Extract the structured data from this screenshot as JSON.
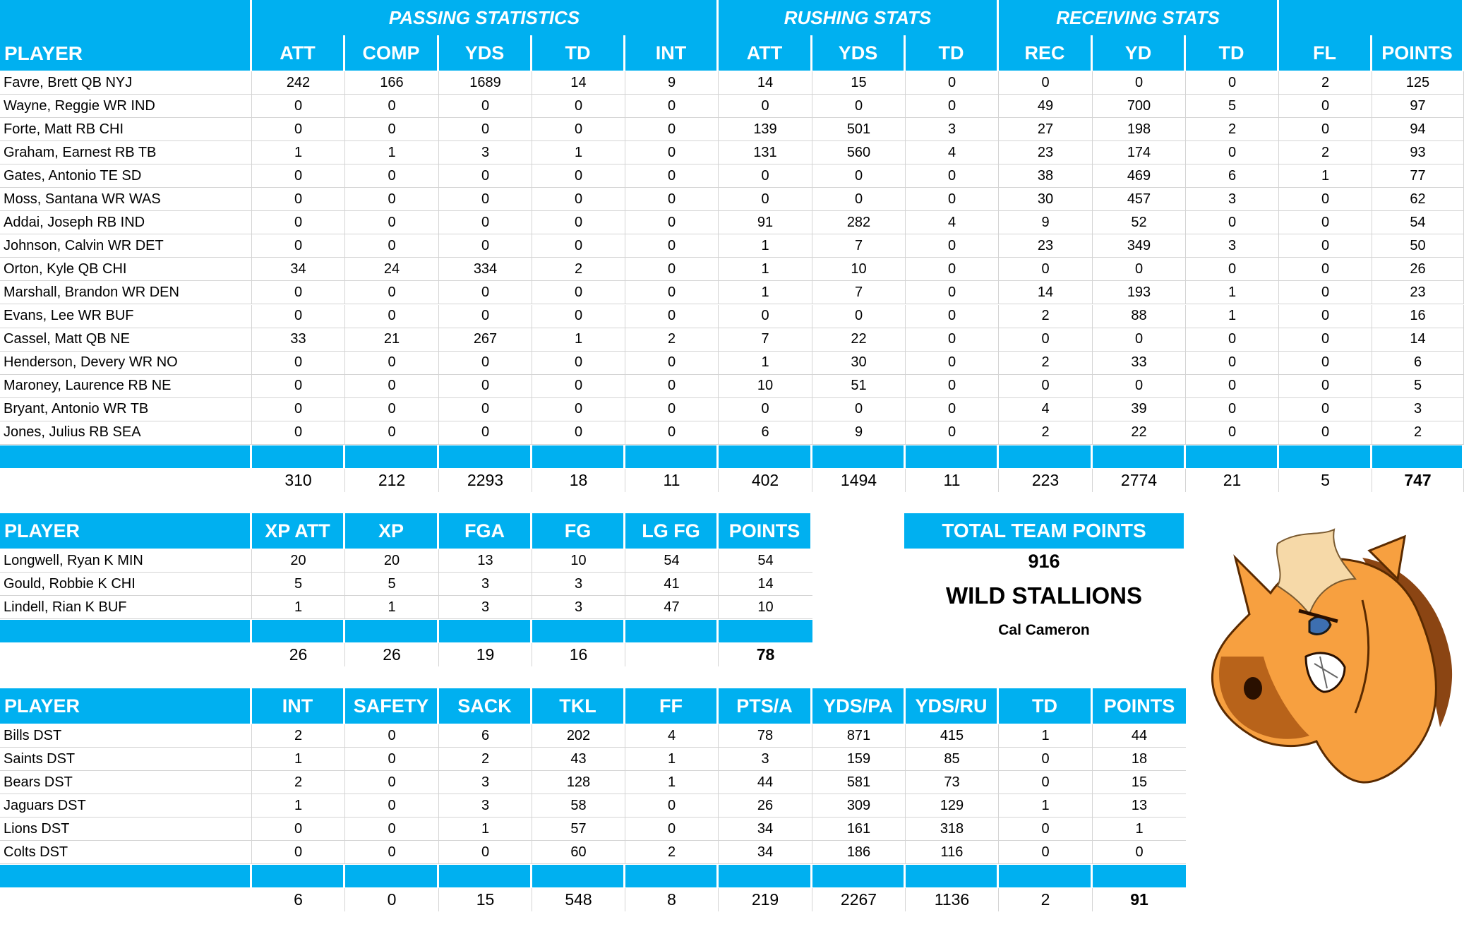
{
  "colors": {
    "accent": "#00B0F0",
    "header_text": "#FFFFFF",
    "grid": "#D4D4D4"
  },
  "offense": {
    "groups": [
      {
        "label": "PASSING STATISTICS"
      },
      {
        "label": "RUSHING STATS"
      },
      {
        "label": "RECEIVING STATS"
      }
    ],
    "columns": [
      "PLAYER",
      "ATT",
      "COMP",
      "YDS",
      "TD",
      "INT",
      "ATT",
      "YDS",
      "TD",
      "REC",
      "YD",
      "TD",
      "FL",
      "POINTS"
    ],
    "rows": [
      [
        "Favre, Brett QB NYJ",
        "242",
        "166",
        "1689",
        "14",
        "9",
        "14",
        "15",
        "0",
        "0",
        "0",
        "0",
        "2",
        "125"
      ],
      [
        "Wayne, Reggie WR IND",
        "0",
        "0",
        "0",
        "0",
        "0",
        "0",
        "0",
        "0",
        "49",
        "700",
        "5",
        "0",
        "97"
      ],
      [
        "Forte, Matt RB CHI",
        "0",
        "0",
        "0",
        "0",
        "0",
        "139",
        "501",
        "3",
        "27",
        "198",
        "2",
        "0",
        "94"
      ],
      [
        "Graham, Earnest RB TB",
        "1",
        "1",
        "3",
        "1",
        "0",
        "131",
        "560",
        "4",
        "23",
        "174",
        "0",
        "2",
        "93"
      ],
      [
        "Gates, Antonio TE SD",
        "0",
        "0",
        "0",
        "0",
        "0",
        "0",
        "0",
        "0",
        "38",
        "469",
        "6",
        "1",
        "77"
      ],
      [
        "Moss, Santana WR WAS",
        "0",
        "0",
        "0",
        "0",
        "0",
        "0",
        "0",
        "0",
        "30",
        "457",
        "3",
        "0",
        "62"
      ],
      [
        "Addai, Joseph RB IND",
        "0",
        "0",
        "0",
        "0",
        "0",
        "91",
        "282",
        "4",
        "9",
        "52",
        "0",
        "0",
        "54"
      ],
      [
        "Johnson, Calvin WR DET",
        "0",
        "0",
        "0",
        "0",
        "0",
        "1",
        "7",
        "0",
        "23",
        "349",
        "3",
        "0",
        "50"
      ],
      [
        "Orton, Kyle QB CHI",
        "34",
        "24",
        "334",
        "2",
        "0",
        "1",
        "10",
        "0",
        "0",
        "0",
        "0",
        "0",
        "26"
      ],
      [
        "Marshall, Brandon WR DEN",
        "0",
        "0",
        "0",
        "0",
        "0",
        "1",
        "7",
        "0",
        "14",
        "193",
        "1",
        "0",
        "23"
      ],
      [
        "Evans, Lee WR BUF",
        "0",
        "0",
        "0",
        "0",
        "0",
        "0",
        "0",
        "0",
        "2",
        "88",
        "1",
        "0",
        "16"
      ],
      [
        "Cassel, Matt QB NE",
        "33",
        "21",
        "267",
        "1",
        "2",
        "7",
        "22",
        "0",
        "0",
        "0",
        "0",
        "0",
        "14"
      ],
      [
        "Henderson, Devery WR NO",
        "0",
        "0",
        "0",
        "0",
        "0",
        "1",
        "30",
        "0",
        "2",
        "33",
        "0",
        "0",
        "6"
      ],
      [
        "Maroney, Laurence RB NE",
        "0",
        "0",
        "0",
        "0",
        "0",
        "10",
        "51",
        "0",
        "0",
        "0",
        "0",
        "0",
        "5"
      ],
      [
        "Bryant, Antonio WR TB",
        "0",
        "0",
        "0",
        "0",
        "0",
        "0",
        "0",
        "0",
        "4",
        "39",
        "0",
        "0",
        "3"
      ],
      [
        "Jones, Julius RB SEA",
        "0",
        "0",
        "0",
        "0",
        "0",
        "6",
        "9",
        "0",
        "2",
        "22",
        "0",
        "0",
        "2"
      ]
    ],
    "totals": [
      "",
      "310",
      "212",
      "2293",
      "18",
      "11",
      "402",
      "1494",
      "11",
      "223",
      "2774",
      "21",
      "5",
      "747"
    ]
  },
  "kickers": {
    "columns": [
      "PLAYER",
      "XP ATT",
      "XP",
      "FGA",
      "FG",
      "LG FG",
      "POINTS"
    ],
    "rows": [
      [
        "Longwell, Ryan K MIN",
        "20",
        "20",
        "13",
        "10",
        "54",
        "54"
      ],
      [
        "Gould, Robbie K CHI",
        "5",
        "5",
        "3",
        "3",
        "41",
        "14"
      ],
      [
        "Lindell, Rian K BUF",
        "1",
        "1",
        "3",
        "3",
        "47",
        "10"
      ]
    ],
    "totals": [
      "",
      "26",
      "26",
      "19",
      "16",
      "",
      "78"
    ]
  },
  "defense": {
    "columns": [
      "PLAYER",
      "INT",
      "SAFETY",
      "SACK",
      "TKL",
      "FF",
      "PTS/A",
      "YDS/PA",
      "YDS/RU",
      "TD",
      "POINTS"
    ],
    "rows": [
      [
        "Bills DST",
        "2",
        "0",
        "6",
        "202",
        "4",
        "78",
        "871",
        "415",
        "1",
        "44"
      ],
      [
        "Saints DST",
        "1",
        "0",
        "2",
        "43",
        "1",
        "3",
        "159",
        "85",
        "0",
        "18"
      ],
      [
        "Bears DST",
        "2",
        "0",
        "3",
        "128",
        "1",
        "44",
        "581",
        "73",
        "0",
        "15"
      ],
      [
        "Jaguars DST",
        "1",
        "0",
        "3",
        "58",
        "0",
        "26",
        "309",
        "129",
        "1",
        "13"
      ],
      [
        "Lions DST",
        "0",
        "0",
        "1",
        "57",
        "0",
        "34",
        "161",
        "318",
        "0",
        "1"
      ],
      [
        "Colts DST",
        "0",
        "0",
        "0",
        "60",
        "2",
        "34",
        "186",
        "116",
        "0",
        "0"
      ]
    ],
    "totals": [
      "",
      "6",
      "0",
      "15",
      "548",
      "8",
      "219",
      "2267",
      "1136",
      "2",
      "91"
    ]
  },
  "team": {
    "total_label": "TOTAL TEAM POINTS",
    "total_points": "916",
    "name": "WILD STALLIONS",
    "owner": "Cal Cameron",
    "logo": "horse-mascot-logo"
  }
}
